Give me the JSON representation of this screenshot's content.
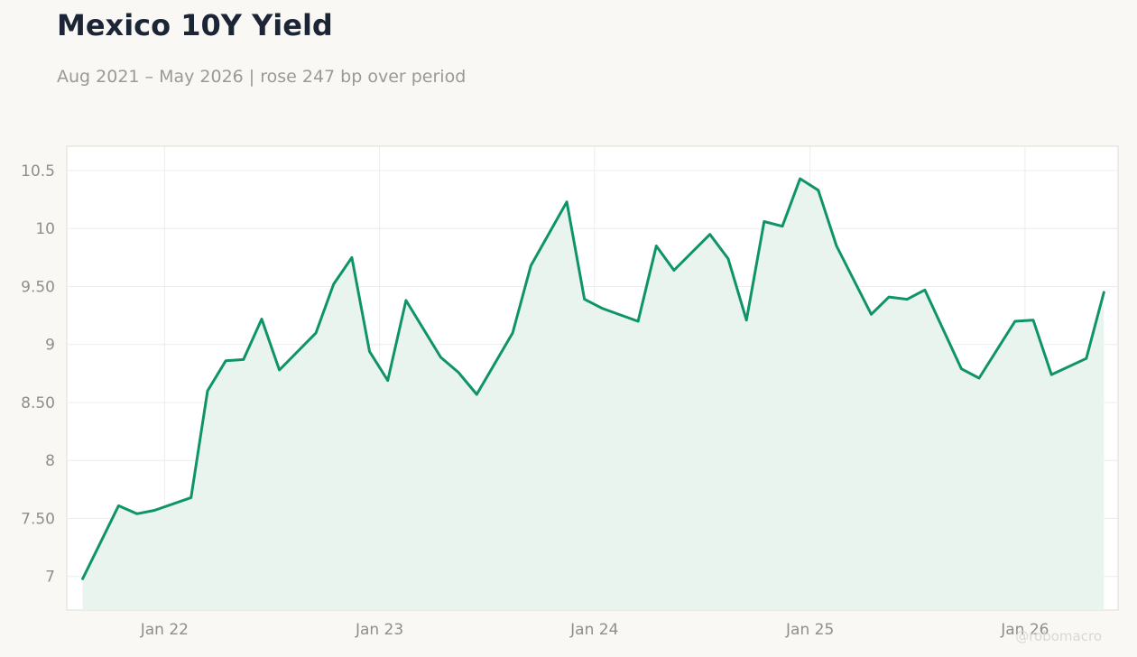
{
  "title": "Mexico 10Y Yield",
  "subtitle": "Aug 2021 – May 2026 | rose 247 bp over period",
  "watermark": "@robomacro",
  "colors": {
    "line": "#0e9467",
    "area": "#e9f4ef",
    "grid": "#ecece9",
    "plot_bg": "#ffffff",
    "page_bg": "#f9f8f5"
  },
  "chart_data": {
    "type": "area",
    "x_ticks": [
      "Jan 22",
      "Jan 23",
      "Jan 24",
      "Jan 25",
      "Jan 26"
    ],
    "y_ticks": [
      "7",
      "7.50",
      "8",
      "8.50",
      "9",
      "9.50",
      "10",
      "10.5"
    ],
    "y_tick_values": [
      7,
      7.5,
      8,
      8.5,
      9,
      9.5,
      10,
      10.5
    ],
    "ylim": [
      6.71,
      10.71
    ],
    "xlim": [
      "2021-07-19",
      "2026-06-08"
    ],
    "grid": true,
    "series": [
      {
        "x": [
          "2021-08-15",
          "2021-10-15",
          "2021-11-15",
          "2021-12-15",
          "2022-02-15",
          "2022-03-15",
          "2022-04-15",
          "2022-05-15",
          "2022-06-15",
          "2022-07-15",
          "2022-09-15",
          "2022-10-15",
          "2022-11-15",
          "2022-12-15",
          "2023-01-15",
          "2023-02-15",
          "2023-04-15",
          "2023-05-15",
          "2023-06-15",
          "2023-08-15",
          "2023-09-15",
          "2023-11-15",
          "2023-12-15",
          "2024-01-15",
          "2024-03-15",
          "2024-04-15",
          "2024-05-15",
          "2024-07-15",
          "2024-08-15",
          "2024-09-15",
          "2024-10-15",
          "2024-11-15",
          "2024-12-15",
          "2025-01-15",
          "2025-02-15",
          "2025-04-15",
          "2025-05-15",
          "2025-06-15",
          "2025-07-15",
          "2025-09-15",
          "2025-10-15",
          "2025-12-15",
          "2026-01-15",
          "2026-02-15",
          "2026-04-15",
          "2026-05-15"
        ],
        "values": [
          6.98,
          7.61,
          7.54,
          7.57,
          7.68,
          8.6,
          8.86,
          8.87,
          9.22,
          8.78,
          9.1,
          9.52,
          9.75,
          8.94,
          8.69,
          9.38,
          8.89,
          8.76,
          8.57,
          9.1,
          9.68,
          10.23,
          9.39,
          9.31,
          9.2,
          9.85,
          9.64,
          9.95,
          9.74,
          9.21,
          10.06,
          10.02,
          10.43,
          10.33,
          9.85,
          9.26,
          9.41,
          9.39,
          9.47,
          8.79,
          8.71,
          9.2,
          9.21,
          8.74,
          8.88,
          9.45
        ]
      }
    ]
  }
}
